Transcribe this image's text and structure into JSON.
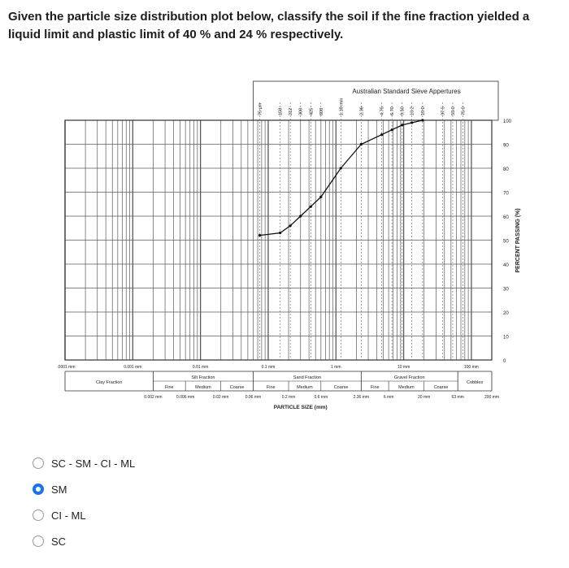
{
  "question": {
    "text": "Given the particle size distribution plot below, classify the soil if the fine fraction yielded a liquid limit and plastic limit of 40 % and 24 % respectively."
  },
  "options": [
    {
      "label": "SC - SM - CI - ML",
      "selected": false
    },
    {
      "label": "SM",
      "selected": true
    },
    {
      "label": "CI - ML",
      "selected": false
    },
    {
      "label": "SC",
      "selected": false
    }
  ],
  "colors": {
    "accent": "#1a73e8",
    "grid": "#5a5a5a",
    "curve": "#111111"
  },
  "chart_data": {
    "type": "line",
    "title": "Australian Standard Sieve Appertures",
    "xlabel": "PARTICLE SIZE (mm)",
    "ylabel": "PERCENT PASSING (%)",
    "xscale": "log",
    "xlim": [
      0.0001,
      200
    ],
    "ylim": [
      0,
      100
    ],
    "yticks": [
      0,
      10,
      20,
      30,
      40,
      50,
      60,
      70,
      80,
      90,
      100
    ],
    "x_tick_labels": [
      {
        "x": 0.0001,
        "label": "0.0001 mm"
      },
      {
        "x": 0.001,
        "label": "0.001 mm"
      },
      {
        "x": 0.01,
        "label": "0.01 mm"
      },
      {
        "x": 0.1,
        "label": "0.1 mm"
      },
      {
        "x": 1,
        "label": "1 mm"
      },
      {
        "x": 10,
        "label": "10 mm"
      },
      {
        "x": 100,
        "label": "100 mm"
      }
    ],
    "boundary_labels": [
      {
        "x": 0.002,
        "label": "0.002 mm"
      },
      {
        "x": 0.006,
        "label": "0.006 mm"
      },
      {
        "x": 0.02,
        "label": "0.02 mm"
      },
      {
        "x": 0.06,
        "label": "0.06 mm"
      },
      {
        "x": 0.2,
        "label": "0.2 mm"
      },
      {
        "x": 0.6,
        "label": "0.6 mm"
      },
      {
        "x": 2.36,
        "label": "2.36 mm"
      },
      {
        "x": 6,
        "label": "6 mm"
      },
      {
        "x": 20,
        "label": "20 mm"
      },
      {
        "x": 63,
        "label": "63 mm"
      },
      {
        "x": 200,
        "label": "200 mm"
      }
    ],
    "sieves": [
      {
        "x": 0.075,
        "label": "75 µm"
      },
      {
        "x": 0.15,
        "label": "150"
      },
      {
        "x": 0.212,
        "label": "212"
      },
      {
        "x": 0.3,
        "label": "300"
      },
      {
        "x": 0.425,
        "label": "425"
      },
      {
        "x": 0.6,
        "label": "600"
      },
      {
        "x": 1.18,
        "label": "1.18 mm"
      },
      {
        "x": 2.36,
        "label": "2.36"
      },
      {
        "x": 4.75,
        "label": "4.75"
      },
      {
        "x": 6.7,
        "label": "6.70"
      },
      {
        "x": 9.5,
        "label": "9.50"
      },
      {
        "x": 13.2,
        "label": "13.2"
      },
      {
        "x": 19,
        "label": "19.0"
      },
      {
        "x": 37.5,
        "label": "37.5"
      },
      {
        "x": 53,
        "label": "53.0"
      },
      {
        "x": 75,
        "label": "75.0"
      }
    ],
    "series": [
      {
        "x": [
          0.075,
          0.15,
          0.212,
          0.3,
          0.425,
          0.6,
          1.18,
          2.36,
          4.75,
          6.7,
          9.5,
          13.2,
          19
        ],
        "values": [
          52,
          53,
          56,
          60,
          64,
          68,
          80,
          90,
          94,
          96,
          98,
          99,
          100
        ]
      }
    ],
    "fractions": [
      {
        "label": "Clay Fraction",
        "from": 0.0001,
        "to": 0.002
      },
      {
        "label": "Silt Fraction",
        "from": 0.002,
        "to": 0.06,
        "subs": [
          "Fine",
          "Medium",
          "Coarse"
        ]
      },
      {
        "label": "Sand Fraction",
        "from": 0.06,
        "to": 2.36,
        "subs": [
          "Fine",
          "Medium",
          "Coarse"
        ]
      },
      {
        "label": "Gravel Fraction",
        "from": 2.36,
        "to": 63,
        "subs": [
          "Fine",
          "Medium",
          "Coarse"
        ]
      },
      {
        "label": "Cobbles",
        "from": 63,
        "to": 200
      }
    ]
  }
}
